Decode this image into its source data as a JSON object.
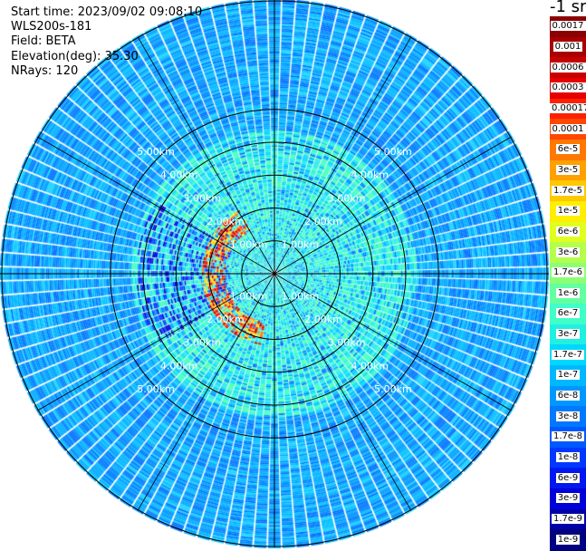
{
  "scan_info": {
    "start_time": "Start time: 2023/09/02 09:08:10",
    "instrument": "WLS200s-181",
    "field": "Field: BETA",
    "elevation": "Elevation(deg): 35.30",
    "nrays": "NRays: 120"
  },
  "colorbar": {
    "unit": "-1 sr",
    "levels": [
      {
        "label": "0.0017",
        "color": "#8b0000"
      },
      {
        "label": "0.001",
        "color": "#a80000"
      },
      {
        "label": "0.0006",
        "color": "#c80000"
      },
      {
        "label": "0.0003",
        "color": "#e60000"
      },
      {
        "label": "0.00017",
        "color": "#ff2000"
      },
      {
        "label": "0.0001",
        "color": "#ff4800"
      },
      {
        "label": "6e-5",
        "color": "#ff7800"
      },
      {
        "label": "3e-5",
        "color": "#ffa000"
      },
      {
        "label": "1.7e-5",
        "color": "#ffc800"
      },
      {
        "label": "1e-5",
        "color": "#ffee00"
      },
      {
        "label": "6e-6",
        "color": "#e0ff20"
      },
      {
        "label": "3e-6",
        "color": "#b4ff4c"
      },
      {
        "label": "1.7e-6",
        "color": "#8cff74"
      },
      {
        "label": "1e-6",
        "color": "#64ffa0"
      },
      {
        "label": "6e-7",
        "color": "#40ffc8"
      },
      {
        "label": "3e-7",
        "color": "#20f0e0"
      },
      {
        "label": "1.7e-7",
        "color": "#00d8ff"
      },
      {
        "label": "1e-7",
        "color": "#00b8ff"
      },
      {
        "label": "6e-8",
        "color": "#0098ff"
      },
      {
        "label": "3e-8",
        "color": "#0078ff"
      },
      {
        "label": "1.7e-8",
        "color": "#0058ff"
      },
      {
        "label": "1e-8",
        "color": "#0038ff"
      },
      {
        "label": "6e-9",
        "color": "#0018f0"
      },
      {
        "label": "3e-9",
        "color": "#0000d8"
      },
      {
        "label": "1.7e-9",
        "color": "#0000a8"
      },
      {
        "label": "1e-9",
        "color": "#000080"
      }
    ]
  },
  "chart_data": {
    "type": "heatmap",
    "projection": "polar PPI scan",
    "rays": 120,
    "range_rings_km": [
      1,
      2,
      3,
      4,
      5
    ],
    "ring_labels": [
      {
        "text": "1.00km",
        "ring_km": 1
      },
      {
        "text": "2.00km",
        "ring_km": 2
      },
      {
        "text": "3.00km",
        "ring_km": 3
      },
      {
        "text": "4.00km",
        "ring_km": 4
      },
      {
        "text": "5.00km",
        "ring_km": 5
      }
    ],
    "max_range_km": 5.0,
    "azimuth_spokes_deg": [
      0,
      30,
      60,
      90,
      120,
      150,
      180,
      210,
      240,
      270,
      300,
      330
    ],
    "background_beta": "3e-8 to 1.7e-7",
    "near_field_beta": "1e-7 to 6e-7",
    "cloud_arc": {
      "range_km": [
        0.9,
        1.3
      ],
      "azimuth_deg": [
        190,
        330
      ],
      "beta": "3e-5 to 0.001"
    },
    "low_signal_sector": {
      "azimuth_deg": [
        240,
        300
      ],
      "range_km": [
        0.8,
        2.5
      ],
      "beta": "1e-9 to 6e-9"
    }
  }
}
